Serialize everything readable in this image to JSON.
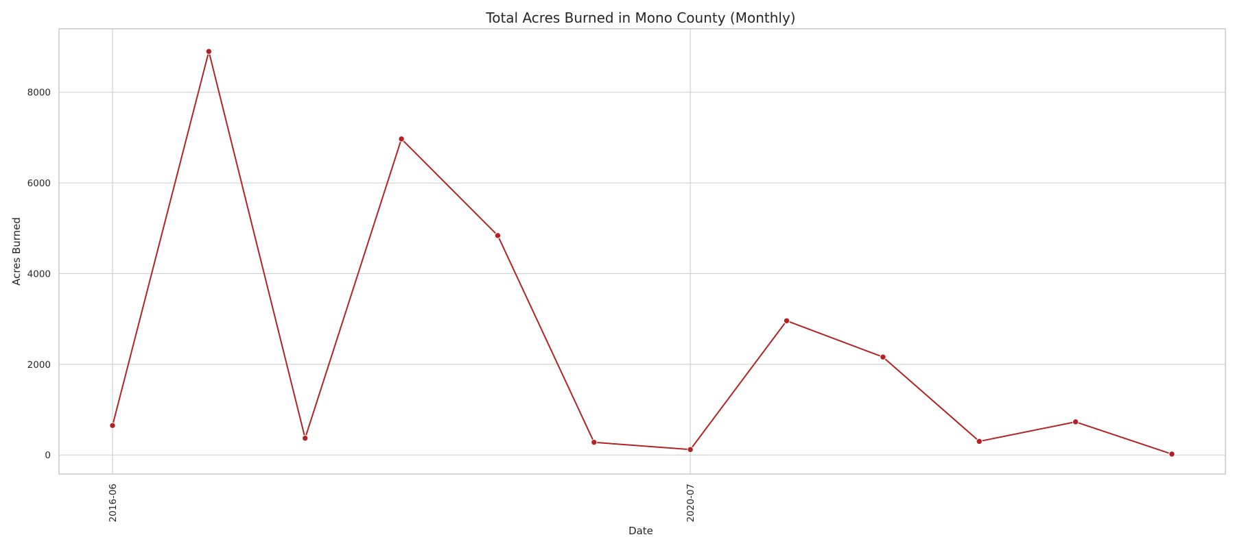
{
  "chart_data": {
    "type": "line",
    "title": "Total Acres Burned in Mono County (Monthly)",
    "xlabel": "Date",
    "ylabel": "Acres Burned",
    "x_tick_labels": [
      "2016-06",
      "2020-07"
    ],
    "x_tick_indices": [
      0,
      6
    ],
    "y_ticks": [
      0,
      2000,
      4000,
      6000,
      8000
    ],
    "ylim": [
      -420,
      9400
    ],
    "grid": true,
    "legend": "none",
    "line_color": "#b22222",
    "series": [
      {
        "values": [
          650,
          8900,
          370,
          6970,
          4840,
          280,
          120,
          2960,
          2160,
          300,
          730,
          20
        ]
      }
    ]
  }
}
